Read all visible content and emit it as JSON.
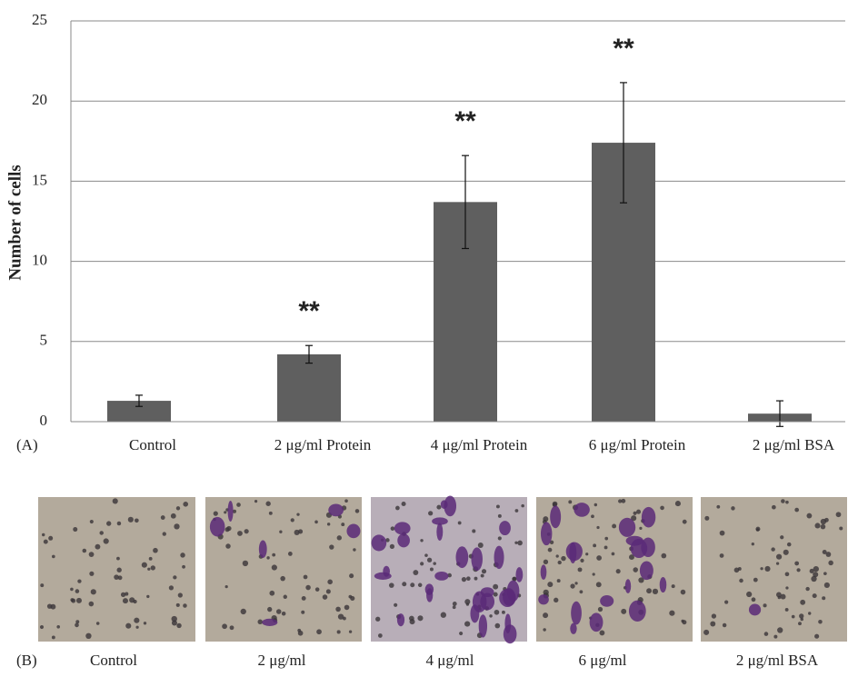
{
  "chart_data": {
    "type": "bar",
    "panel_label": "(A)",
    "y_label": "Number of cells",
    "categories": [
      "Control",
      "2 μg/ml Protein",
      "4 μg/ml Protein",
      "6 μg/ml Protein",
      "2 μg/ml BSA"
    ],
    "values": [
      1.3,
      4.2,
      13.7,
      17.4,
      0.5
    ],
    "errors": [
      0.35,
      0.55,
      2.9,
      3.75,
      0.8
    ],
    "significance": [
      null,
      "**",
      "**",
      "**",
      null
    ],
    "color": "#5f5f5f",
    "ylim": [
      0,
      25
    ],
    "yticks": [
      0,
      5,
      10,
      15,
      20,
      25
    ],
    "grid": true
  },
  "panel_b": {
    "panel_label": "(B)",
    "captions": [
      "Control",
      "2 μg/ml",
      "4 μg/ml",
      "6 μg/ml",
      "2 μg/ml BSA"
    ]
  }
}
